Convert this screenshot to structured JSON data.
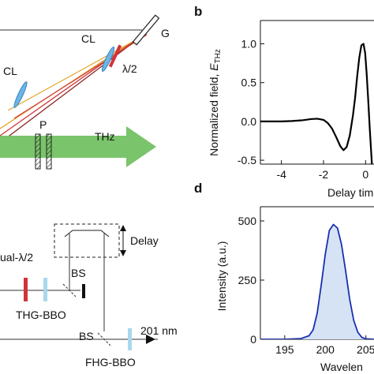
{
  "panels": {
    "b": "b",
    "d": "d"
  },
  "labels": {
    "cl_top": "CL",
    "cl_left": "CL",
    "grating": "G",
    "half_wave": "λ/2",
    "polarizer": "P",
    "thz": "THz",
    "delay": "Delay",
    "dual_half_wave": "ual-λ/2",
    "bs_upper": "BS",
    "thg_bbo": "THG-BBO",
    "bs_lower": "BS",
    "output_wavelength": "201 nm",
    "fhg_bbo": "FHG-BBO"
  },
  "chart_data": [
    {
      "type": "line",
      "panel": "b",
      "ylabel": "Normalized field, E_THz",
      "ylabel_main": "Normalized field, ",
      "ylabel_symbol": "E",
      "ylabel_sub": "THz",
      "xlabel": "Delay tim",
      "xlim": [
        -5,
        0.4
      ],
      "ylim": [
        -0.55,
        1.3
      ],
      "xticks": [
        -4,
        -2,
        0
      ],
      "xtick_labels": [
        "-4",
        "-2",
        "0"
      ],
      "yticks": [
        -0.5,
        0.0,
        0.5,
        1.0
      ],
      "ytick_labels": [
        "-0.5",
        "0.0",
        "0.5",
        "1.0"
      ],
      "color": "#000000",
      "series": [
        {
          "x": [
            -5.0,
            -4.5,
            -4.0,
            -3.5,
            -3.0,
            -2.6,
            -2.3,
            -2.0,
            -1.8,
            -1.6,
            -1.4,
            -1.2,
            -1.05,
            -0.9,
            -0.75,
            -0.6,
            -0.5,
            -0.4,
            -0.3,
            -0.2,
            -0.1,
            -0.02,
            0.05,
            0.12,
            0.2,
            0.3,
            0.4
          ],
          "y": [
            0.0,
            0.0,
            0.0,
            0.005,
            0.015,
            0.03,
            0.035,
            0.02,
            -0.02,
            -0.09,
            -0.2,
            -0.32,
            -0.37,
            -0.33,
            -0.18,
            0.08,
            0.3,
            0.58,
            0.82,
            0.98,
            1.0,
            0.88,
            0.62,
            0.3,
            -0.1,
            -0.55,
            -0.7
          ]
        }
      ]
    },
    {
      "type": "area",
      "panel": "d",
      "ylabel": "Intensity (a.u.)",
      "xlabel": "Wavelen",
      "xlim": [
        192,
        206
      ],
      "ylim": [
        0,
        560
      ],
      "xticks": [
        195,
        200,
        205
      ],
      "xtick_labels": [
        "195",
        "200",
        "205"
      ],
      "yticks": [
        0,
        250,
        500
      ],
      "ytick_labels": [
        "0",
        "250",
        "500"
      ],
      "line_color": "#1a2fb0",
      "fill_color": "#d5e3f5",
      "series": [
        {
          "x": [
            192,
            195,
            197,
            198,
            198.5,
            199,
            199.5,
            200,
            200.5,
            201,
            201.5,
            202,
            202.5,
            203,
            203.5,
            204,
            204.5,
            205,
            206
          ],
          "y": [
            0,
            0,
            3,
            15,
            40,
            110,
            230,
            360,
            460,
            485,
            470,
            400,
            290,
            170,
            80,
            30,
            8,
            2,
            0
          ]
        }
      ]
    }
  ]
}
